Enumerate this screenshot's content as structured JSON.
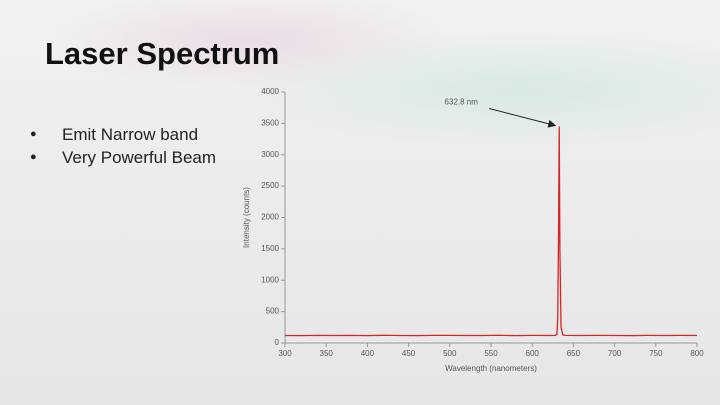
{
  "slide": {
    "title": "Laser Spectrum",
    "bullets": [
      "Emit Narrow band",
      "Very Powerful Beam"
    ]
  },
  "chart_data": {
    "type": "line",
    "x_label": "Wavelength (nanometers)",
    "y_label": "Intensity (counts)",
    "annotation": {
      "text": "632.8 nm",
      "x": 632.8,
      "y": 3450
    },
    "x": [
      300,
      320,
      340,
      360,
      380,
      400,
      420,
      440,
      460,
      480,
      500,
      520,
      540,
      560,
      580,
      600,
      620,
      628,
      630,
      631,
      632,
      632.8,
      633.6,
      635,
      637,
      640,
      660,
      680,
      700,
      720,
      740,
      760,
      780,
      800
    ],
    "series": [
      {
        "color": "#d42424",
        "values": [
          120,
          118,
          122,
          119,
          121,
          117,
          123,
          120,
          118,
          122,
          121,
          119,
          120,
          123,
          118,
          121,
          120,
          122,
          140,
          400,
          1800,
          3450,
          1500,
          250,
          130,
          121,
          119,
          122,
          120,
          118,
          121,
          119,
          122,
          120
        ]
      }
    ],
    "xlim": [
      300,
      800
    ],
    "xticks": [
      300,
      350,
      400,
      450,
      500,
      550,
      600,
      650,
      700,
      750,
      800
    ],
    "ylim": [
      0,
      4000
    ],
    "yticks": [
      0,
      500,
      1000,
      1500,
      2000,
      2500,
      3000,
      3500,
      4000
    ]
  }
}
